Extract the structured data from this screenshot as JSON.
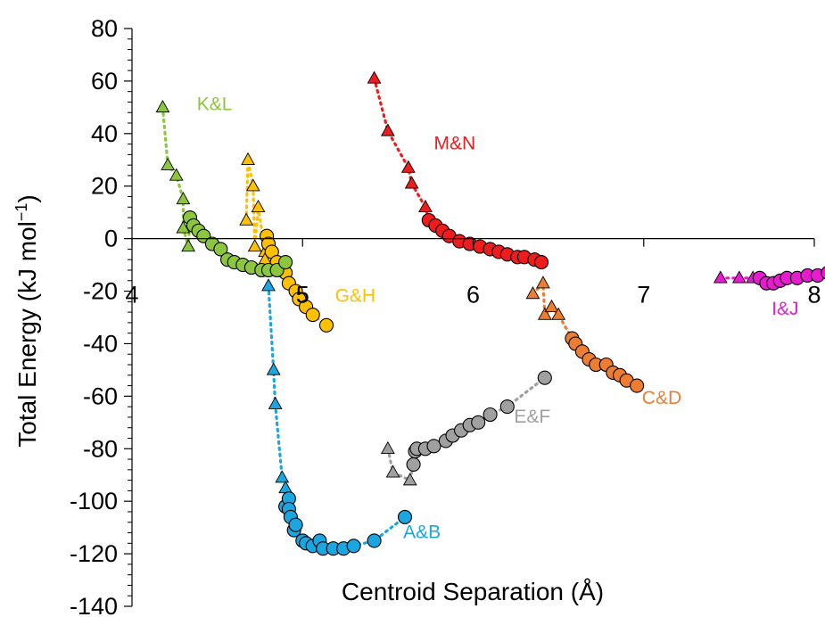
{
  "chart_data": {
    "type": "scatter",
    "xlabel": "Centroid Separation (Å)",
    "ylabel_main": "Total Energy (kJ mol",
    "ylabel_sup": "−1",
    "ylabel_close": ")",
    "xlim": [
      4,
      8
    ],
    "ylim": [
      -140,
      80
    ],
    "x_ticks": [
      "4",
      "5",
      "6",
      "7",
      "8"
    ],
    "y_ticks": [
      "80",
      "60",
      "40",
      "20",
      "0",
      "-20",
      "-40",
      "-60",
      "-80",
      "-100",
      "-120",
      "-140"
    ],
    "grid": false,
    "series": [
      {
        "name": "A&B",
        "color": "#1CA6E0",
        "triangles": [
          [
            4.8,
            -18
          ],
          [
            4.83,
            -50
          ],
          [
            4.84,
            -63
          ],
          [
            4.88,
            -91
          ],
          [
            4.9,
            -95
          ]
        ],
        "circles": [
          [
            4.9,
            -102
          ],
          [
            4.92,
            -99
          ],
          [
            4.92,
            -103
          ],
          [
            4.93,
            -106
          ],
          [
            4.95,
            -111
          ],
          [
            4.96,
            -109
          ],
          [
            5.0,
            -115
          ],
          [
            5.02,
            -116
          ],
          [
            5.06,
            -117
          ],
          [
            5.1,
            -115
          ],
          [
            5.12,
            -118
          ],
          [
            5.18,
            -118
          ],
          [
            5.24,
            -118
          ],
          [
            5.3,
            -117
          ],
          [
            5.42,
            -115
          ],
          [
            5.6,
            -106
          ]
        ]
      },
      {
        "name": "C&D",
        "color": "#ED7D31",
        "triangles": [
          [
            6.35,
            -21
          ],
          [
            6.41,
            -17
          ],
          [
            6.42,
            -29
          ],
          [
            6.46,
            -26
          ],
          [
            6.5,
            -29
          ]
        ],
        "circles": [
          [
            6.58,
            -38
          ],
          [
            6.6,
            -40
          ],
          [
            6.64,
            -43
          ],
          [
            6.68,
            -46
          ],
          [
            6.72,
            -48
          ],
          [
            6.78,
            -48
          ],
          [
            6.82,
            -51
          ],
          [
            6.86,
            -52
          ],
          [
            6.9,
            -54
          ],
          [
            6.96,
            -56
          ]
        ]
      },
      {
        "name": "E&F",
        "color": "#A0A0A0",
        "triangles": [
          [
            5.5,
            -80
          ],
          [
            5.53,
            -89
          ],
          [
            5.63,
            -92
          ]
        ],
        "circles": [
          [
            5.65,
            -86
          ],
          [
            5.66,
            -81
          ],
          [
            5.67,
            -80
          ],
          [
            5.72,
            -80
          ],
          [
            5.77,
            -79
          ],
          [
            5.84,
            -77
          ],
          [
            5.88,
            -75
          ],
          [
            5.93,
            -73
          ],
          [
            5.98,
            -71
          ],
          [
            6.03,
            -70
          ],
          [
            6.1,
            -67
          ],
          [
            6.2,
            -64
          ],
          [
            6.42,
            -53
          ]
        ]
      },
      {
        "name": "G&H",
        "color": "#FFC000",
        "triangles": [
          [
            4.68,
            30
          ],
          [
            4.71,
            20
          ],
          [
            4.74,
            12
          ],
          [
            4.67,
            7
          ],
          [
            4.72,
            -3
          ],
          [
            4.78,
            -5
          ],
          [
            4.78,
            -8
          ]
        ],
        "circles": [
          [
            4.79,
            1
          ],
          [
            4.8,
            -2
          ],
          [
            4.82,
            -5
          ],
          [
            4.85,
            -9
          ],
          [
            4.9,
            -13
          ],
          [
            4.92,
            -17
          ],
          [
            4.96,
            -20
          ],
          [
            4.98,
            -23
          ],
          [
            5.02,
            -26
          ],
          [
            5.06,
            -29
          ],
          [
            5.14,
            -33
          ]
        ]
      },
      {
        "name": "I&J",
        "color": "#E81BD0",
        "triangles": [
          [
            7.45,
            -15
          ],
          [
            7.56,
            -15
          ],
          [
            7.64,
            -15
          ]
        ],
        "circles": [
          [
            7.68,
            -15
          ],
          [
            7.72,
            -17
          ],
          [
            7.76,
            -17
          ],
          [
            7.8,
            -16
          ],
          [
            7.84,
            -15
          ],
          [
            7.9,
            -15
          ],
          [
            7.96,
            -14
          ],
          [
            8.02,
            -14
          ],
          [
            8.08,
            -13
          ]
        ]
      },
      {
        "name": "K&L",
        "color": "#8CC63E",
        "triangles": [
          [
            4.18,
            50
          ],
          [
            4.21,
            28
          ],
          [
            4.26,
            24
          ],
          [
            4.3,
            15
          ],
          [
            4.3,
            4
          ],
          [
            4.33,
            -3
          ]
        ],
        "circles": [
          [
            4.34,
            8
          ],
          [
            4.36,
            5
          ],
          [
            4.39,
            3
          ],
          [
            4.42,
            1
          ],
          [
            4.47,
            -2
          ],
          [
            4.52,
            -4
          ],
          [
            4.56,
            -8
          ],
          [
            4.6,
            -9
          ],
          [
            4.65,
            -10
          ],
          [
            4.7,
            -11
          ],
          [
            4.76,
            -12
          ],
          [
            4.8,
            -12
          ],
          [
            4.85,
            -12
          ],
          [
            4.9,
            -9
          ]
        ]
      },
      {
        "name": "M&N",
        "color": "#EE1C1C",
        "triangles": [
          [
            5.42,
            61
          ],
          [
            5.5,
            41
          ],
          [
            5.62,
            27
          ],
          [
            5.64,
            21
          ],
          [
            5.72,
            12
          ]
        ],
        "circles": [
          [
            5.74,
            7
          ],
          [
            5.78,
            5
          ],
          [
            5.82,
            3
          ],
          [
            5.86,
            1
          ],
          [
            5.92,
            -1
          ],
          [
            5.98,
            -2
          ],
          [
            6.04,
            -3
          ],
          [
            6.1,
            -4
          ],
          [
            6.15,
            -5
          ],
          [
            6.2,
            -6
          ],
          [
            6.26,
            -7
          ],
          [
            6.3,
            -7
          ],
          [
            6.36,
            -8
          ],
          [
            6.4,
            -9
          ]
        ]
      }
    ],
    "labels": [
      {
        "series": "K&L",
        "text": "K&L",
        "x": 4.38,
        "y": 49
      },
      {
        "series": "G&H",
        "text": "G&H",
        "x": 5.19,
        "y": -24
      },
      {
        "series": "M&N",
        "text": "M&N",
        "x": 5.77,
        "y": 34
      },
      {
        "series": "A&B",
        "text": "A&B",
        "x": 5.59,
        "y": -114
      },
      {
        "series": "E&F",
        "text": "E&F",
        "x": 6.24,
        "y": -70
      },
      {
        "series": "C&D",
        "text": "C&D",
        "x": 6.99,
        "y": -63
      },
      {
        "series": "I&J",
        "text": "I&J",
        "x": 7.75,
        "y": -29
      }
    ]
  }
}
